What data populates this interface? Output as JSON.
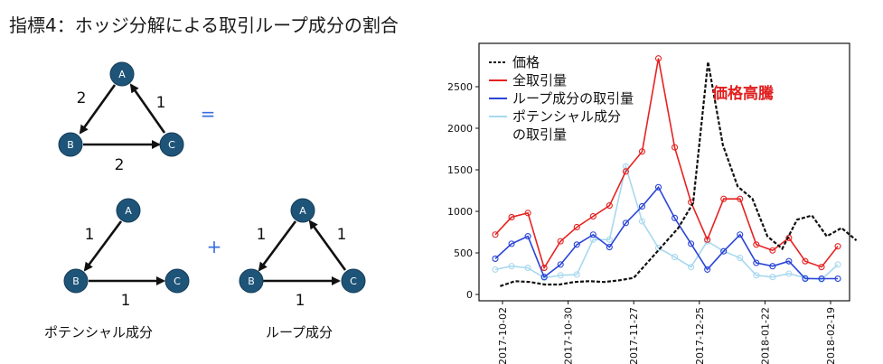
{
  "title": "指標4：ホッジ分解による取引ループ成分の割合",
  "operators": {
    "equals": "=",
    "plus": "+"
  },
  "captions": {
    "potential": "ポテンシャル成分",
    "loop": "ループ成分"
  },
  "graphs": {
    "total": {
      "nodes": [
        "A",
        "B",
        "C"
      ],
      "edges": [
        {
          "from": "A",
          "to": "B",
          "weight": "2"
        },
        {
          "from": "B",
          "to": "C",
          "weight": "2"
        },
        {
          "from": "C",
          "to": "A",
          "weight": "1"
        }
      ]
    },
    "potential": {
      "nodes": [
        "A",
        "B",
        "C"
      ],
      "edges": [
        {
          "from": "A",
          "to": "B",
          "weight": "1"
        },
        {
          "from": "B",
          "to": "C",
          "weight": "1"
        }
      ]
    },
    "loop": {
      "nodes": [
        "A",
        "B",
        "C"
      ],
      "edges": [
        {
          "from": "A",
          "to": "B",
          "weight": "1"
        },
        {
          "from": "B",
          "to": "C",
          "weight": "1"
        },
        {
          "from": "C",
          "to": "A",
          "weight": "1"
        }
      ]
    }
  },
  "chart_data": {
    "type": "line",
    "x_tick_labels": [
      "2017-10-02",
      "2017-10-30",
      "2017-11-27",
      "2017-12-25",
      "2018-01-22",
      "2018-02-19"
    ],
    "y_ticks": [
      0,
      500,
      1000,
      1500,
      2000,
      2500
    ],
    "ylim": [
      0,
      2800
    ],
    "annotation": "価格高騰",
    "legend_position": "top-left",
    "colors": {
      "price": "#111111",
      "total": "#e62222",
      "loop": "#2a44d6",
      "potential": "#a8d8ee"
    },
    "weeks": [
      0,
      1,
      2,
      3,
      4,
      5,
      6,
      7,
      8,
      9,
      10,
      11,
      12,
      13,
      14,
      15,
      16,
      17,
      18,
      19,
      20,
      21,
      22,
      23,
      24
    ],
    "series": [
      {
        "key": "price",
        "name": "価格",
        "style": "dotted",
        "values": [
          100,
          160,
          150,
          120,
          120,
          150,
          160,
          150,
          170,
          200,
          400,
          600,
          800,
          1100,
          2800,
          1800,
          1300,
          1150,
          700,
          550,
          900,
          950,
          700,
          800,
          650
        ]
      },
      {
        "key": "total",
        "name": "全取引量",
        "style": "solid",
        "markers": true,
        "values": [
          720,
          930,
          980,
          320,
          640,
          810,
          940,
          1070,
          1480,
          1720,
          2840,
          1770,
          1110,
          660,
          1150,
          1150,
          600,
          530,
          680,
          400,
          330,
          580
        ]
      },
      {
        "key": "loop",
        "name": "ループ成分の取引量",
        "style": "solid",
        "markers": true,
        "values": [
          430,
          610,
          700,
          210,
          360,
          600,
          720,
          570,
          860,
          1060,
          1290,
          920,
          610,
          300,
          520,
          720,
          380,
          340,
          400,
          190,
          190,
          190
        ]
      },
      {
        "key": "potential",
        "name_lines": [
          "ポテンシャル成分",
          "の取引量"
        ],
        "style": "solid",
        "markers": true,
        "values": [
          300,
          340,
          320,
          200,
          230,
          240,
          660,
          660,
          1540,
          880,
          560,
          450,
          330,
          640,
          520,
          440,
          230,
          210,
          250,
          200,
          180,
          360
        ]
      }
    ]
  }
}
